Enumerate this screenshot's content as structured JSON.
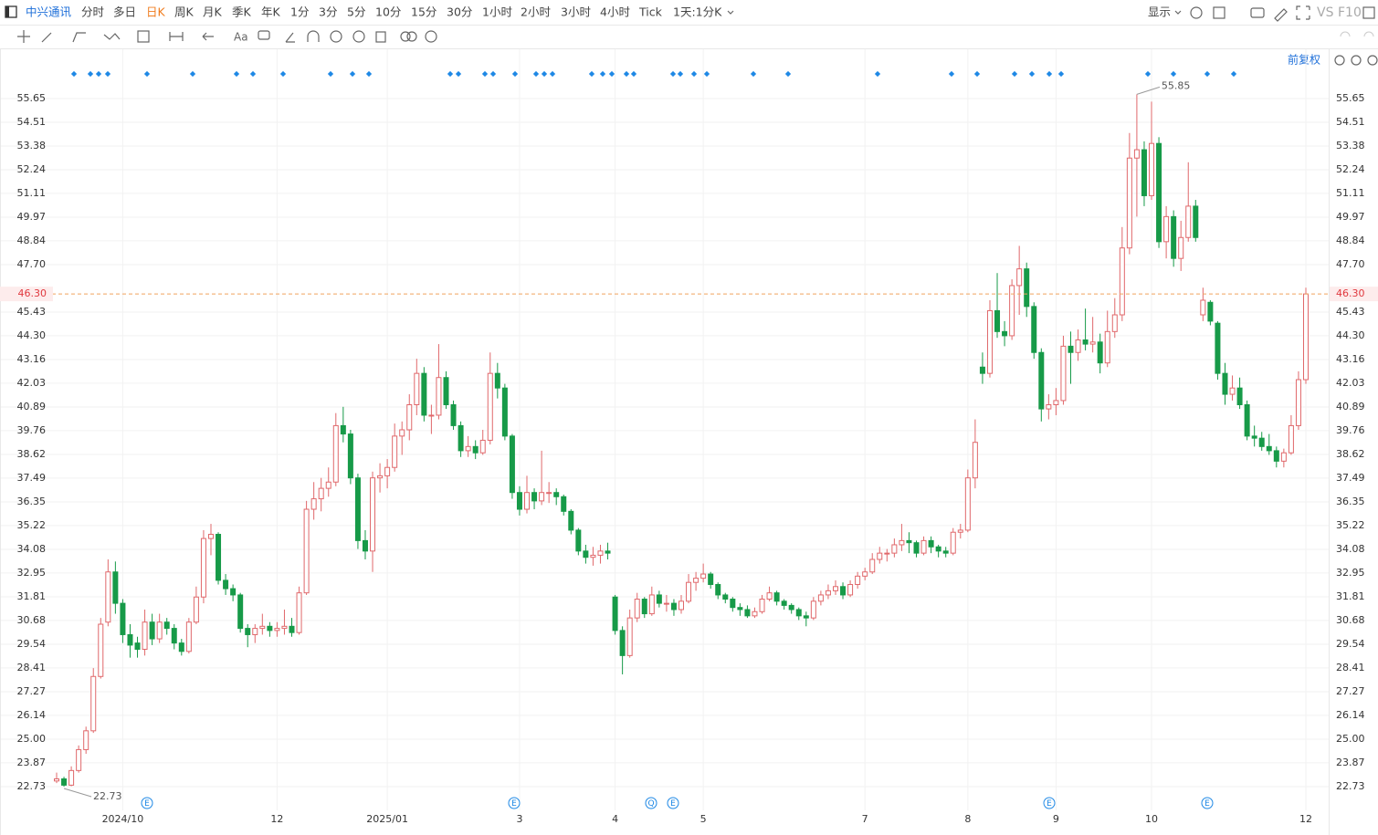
{
  "toolbar": {
    "symbol": "中兴通讯",
    "periods": [
      "分时",
      "多日",
      "日K",
      "周K",
      "月K",
      "季K",
      "年K",
      "1分",
      "3分",
      "5分",
      "10分",
      "15分",
      "30分",
      "1小时",
      "2小时",
      "3小时",
      "4小时",
      "Tick"
    ],
    "active_index": 2,
    "range": "1天:1分K",
    "display": "显示",
    "compare": "VS",
    "f10": "F10"
  },
  "chart_data": {
    "type": "candlestick",
    "adjust_label": "前复权",
    "categories": [
      null,
      null,
      null,
      null,
      null,
      null,
      null,
      null,
      null,
      "2024/10",
      null,
      null,
      null,
      null,
      null,
      null,
      null,
      null,
      null,
      null,
      null,
      null,
      null,
      null,
      null,
      null,
      null,
      null,
      null,
      null,
      "12",
      null,
      null,
      null,
      null,
      null,
      null,
      null,
      null,
      null,
      null,
      null,
      null,
      null,
      null,
      "2025/01",
      null,
      null,
      null,
      null,
      null,
      null,
      null,
      null,
      null,
      null,
      null,
      null,
      null,
      null,
      null,
      null,
      null,
      "3",
      null,
      null,
      null,
      null,
      null,
      null,
      null,
      null,
      null,
      null,
      null,
      null,
      "4",
      null,
      null,
      null,
      null,
      null,
      null,
      null,
      null,
      null,
      null,
      null,
      "5",
      null,
      null,
      null,
      null,
      null,
      null,
      null,
      null,
      null,
      null,
      null,
      null,
      null,
      null,
      null,
      null,
      null,
      null,
      null,
      null,
      null,
      "7",
      null,
      null,
      null,
      null,
      null,
      null,
      null,
      null,
      null,
      null,
      null,
      null,
      null,
      "8",
      null,
      null,
      null,
      null,
      null,
      null,
      null,
      null,
      null,
      null,
      null,
      "9",
      null,
      null,
      null,
      null,
      null,
      null,
      null,
      null,
      null,
      null,
      null,
      null,
      "10",
      null,
      null,
      null,
      null,
      null,
      null,
      null,
      null,
      null,
      null,
      null,
      null,
      null,
      null,
      null,
      null,
      null,
      null,
      null,
      null,
      "12"
    ],
    "values": [
      [
        23.0,
        23.4,
        22.9,
        23.1
      ],
      [
        23.1,
        23.2,
        22.73,
        22.8
      ],
      [
        22.8,
        23.7,
        22.75,
        23.5
      ],
      [
        23.5,
        24.7,
        23.4,
        24.5
      ],
      [
        24.5,
        25.6,
        24.3,
        25.4
      ],
      [
        25.4,
        28.4,
        25.3,
        28.0
      ],
      [
        28.0,
        30.8,
        27.9,
        30.5
      ],
      [
        30.6,
        33.6,
        30.4,
        33.0
      ],
      [
        33.0,
        33.5,
        31.0,
        31.5
      ],
      [
        31.5,
        31.7,
        29.6,
        30.0
      ],
      [
        30.0,
        30.5,
        28.9,
        29.5
      ],
      [
        29.6,
        29.9,
        28.9,
        29.3
      ],
      [
        29.3,
        31.2,
        29.0,
        30.6
      ],
      [
        30.6,
        31.0,
        29.5,
        29.8
      ],
      [
        29.8,
        31.0,
        29.6,
        30.6
      ],
      [
        30.6,
        30.8,
        30.0,
        30.3
      ],
      [
        30.3,
        30.5,
        29.3,
        29.6
      ],
      [
        29.6,
        29.8,
        29.0,
        29.2
      ],
      [
        29.2,
        30.8,
        29.1,
        30.6
      ],
      [
        30.6,
        32.3,
        30.5,
        31.8
      ],
      [
        31.8,
        35.0,
        31.5,
        34.6
      ],
      [
        34.6,
        35.3,
        33.8,
        34.8
      ],
      [
        34.8,
        34.9,
        32.4,
        32.6
      ],
      [
        32.6,
        32.9,
        31.9,
        32.2
      ],
      [
        32.2,
        32.4,
        31.6,
        31.9
      ],
      [
        31.9,
        32.0,
        30.1,
        30.3
      ],
      [
        30.3,
        30.5,
        29.4,
        30.0
      ],
      [
        30.0,
        30.5,
        29.6,
        30.3
      ],
      [
        30.3,
        31.0,
        30.0,
        30.4
      ],
      [
        30.4,
        30.6,
        29.9,
        30.2
      ],
      [
        30.2,
        30.6,
        29.9,
        30.3
      ],
      [
        30.3,
        31.2,
        30.0,
        30.4
      ],
      [
        30.4,
        30.8,
        29.9,
        30.1
      ],
      [
        30.1,
        32.3,
        30.0,
        32.0
      ],
      [
        32.0,
        36.4,
        31.9,
        36.0
      ],
      [
        36.0,
        37.3,
        35.5,
        36.5
      ],
      [
        36.5,
        37.5,
        35.9,
        37.0
      ],
      [
        37.0,
        38.0,
        36.6,
        37.3
      ],
      [
        37.3,
        40.6,
        37.1,
        40.0
      ],
      [
        40.0,
        40.9,
        39.2,
        39.6
      ],
      [
        39.6,
        39.8,
        37.2,
        37.5
      ],
      [
        37.5,
        37.7,
        34.1,
        34.5
      ],
      [
        34.5,
        35.0,
        33.6,
        34.0
      ],
      [
        34.0,
        37.8,
        33.0,
        37.5
      ],
      [
        37.5,
        38.2,
        36.8,
        37.6
      ],
      [
        37.6,
        38.4,
        37.0,
        38.0
      ],
      [
        38.0,
        40.1,
        37.8,
        39.5
      ],
      [
        39.5,
        40.2,
        38.6,
        39.8
      ],
      [
        39.8,
        41.5,
        39.3,
        41.0
      ],
      [
        41.0,
        43.2,
        40.5,
        42.5
      ],
      [
        42.5,
        42.8,
        40.2,
        40.5
      ],
      [
        40.5,
        41.0,
        39.6,
        40.5
      ],
      [
        40.5,
        43.9,
        40.3,
        42.3
      ],
      [
        42.3,
        42.6,
        40.8,
        41.0
      ],
      [
        41.0,
        41.2,
        39.8,
        40.0
      ],
      [
        40.0,
        40.2,
        38.5,
        38.8
      ],
      [
        38.8,
        39.5,
        38.5,
        39.0
      ],
      [
        39.0,
        39.3,
        38.4,
        38.7
      ],
      [
        38.7,
        39.8,
        38.6,
        39.3
      ],
      [
        39.3,
        43.5,
        39.1,
        42.5
      ],
      [
        42.5,
        43.0,
        41.3,
        41.8
      ],
      [
        41.8,
        42.0,
        39.3,
        39.5
      ],
      [
        39.5,
        39.6,
        36.5,
        36.8
      ],
      [
        36.8,
        37.1,
        35.7,
        36.0
      ],
      [
        36.0,
        37.6,
        35.8,
        36.8
      ],
      [
        36.8,
        37.0,
        36.0,
        36.4
      ],
      [
        36.4,
        38.8,
        36.2,
        36.8
      ],
      [
        36.8,
        37.3,
        36.3,
        36.8
      ],
      [
        36.8,
        37.0,
        36.2,
        36.6
      ],
      [
        36.6,
        36.7,
        35.7,
        35.9
      ],
      [
        35.9,
        36.0,
        34.8,
        35.0
      ],
      [
        35.0,
        35.1,
        33.8,
        34.0
      ],
      [
        34.0,
        34.3,
        33.4,
        33.7
      ],
      [
        33.7,
        34.2,
        33.3,
        33.8
      ],
      [
        33.8,
        34.3,
        33.4,
        34.0
      ],
      [
        34.0,
        34.4,
        33.6,
        33.9
      ],
      [
        31.8,
        31.9,
        30.0,
        30.2
      ],
      [
        30.2,
        30.4,
        28.1,
        29.0
      ],
      [
        29.0,
        31.2,
        28.9,
        30.8
      ],
      [
        30.8,
        32.0,
        30.6,
        31.7
      ],
      [
        31.7,
        31.8,
        30.8,
        31.0
      ],
      [
        31.0,
        32.3,
        30.9,
        31.9
      ],
      [
        31.9,
        32.1,
        31.3,
        31.5
      ],
      [
        31.5,
        31.9,
        31.1,
        31.5
      ],
      [
        31.5,
        31.7,
        30.9,
        31.2
      ],
      [
        31.2,
        31.9,
        31.0,
        31.6
      ],
      [
        31.6,
        32.9,
        31.5,
        32.5
      ],
      [
        32.5,
        33.0,
        32.1,
        32.7
      ],
      [
        32.7,
        33.4,
        32.5,
        32.9
      ],
      [
        32.9,
        33.0,
        32.2,
        32.4
      ],
      [
        32.4,
        32.5,
        31.7,
        31.9
      ],
      [
        31.9,
        32.0,
        31.5,
        31.7
      ],
      [
        31.7,
        31.8,
        31.1,
        31.3
      ],
      [
        31.3,
        31.5,
        30.9,
        31.2
      ],
      [
        31.2,
        31.4,
        30.8,
        30.9
      ],
      [
        30.9,
        31.3,
        30.8,
        31.1
      ],
      [
        31.1,
        31.9,
        31.0,
        31.7
      ],
      [
        31.7,
        32.3,
        31.6,
        32.0
      ],
      [
        32.0,
        32.1,
        31.4,
        31.6
      ],
      [
        31.6,
        31.7,
        31.2,
        31.4
      ],
      [
        31.4,
        31.5,
        31.0,
        31.2
      ],
      [
        31.2,
        31.3,
        30.7,
        30.9
      ],
      [
        30.9,
        31.1,
        30.4,
        30.8
      ],
      [
        30.8,
        31.8,
        30.7,
        31.6
      ],
      [
        31.6,
        32.1,
        31.4,
        31.9
      ],
      [
        31.9,
        32.4,
        31.7,
        32.1
      ],
      [
        32.1,
        32.6,
        31.9,
        32.3
      ],
      [
        32.3,
        32.5,
        31.7,
        31.9
      ],
      [
        31.9,
        32.6,
        31.8,
        32.4
      ],
      [
        32.4,
        33.0,
        32.2,
        32.8
      ],
      [
        32.8,
        33.2,
        32.6,
        33.0
      ],
      [
        33.0,
        33.9,
        32.9,
        33.6
      ],
      [
        33.6,
        34.2,
        33.4,
        33.9
      ],
      [
        33.9,
        34.1,
        33.5,
        33.9
      ],
      [
        33.9,
        34.6,
        33.7,
        34.3
      ],
      [
        34.3,
        35.3,
        34.0,
        34.5
      ],
      [
        34.5,
        34.9,
        33.9,
        34.4
      ],
      [
        34.4,
        34.5,
        33.7,
        33.9
      ],
      [
        33.9,
        34.7,
        33.8,
        34.5
      ],
      [
        34.5,
        34.7,
        33.9,
        34.2
      ],
      [
        34.2,
        34.3,
        33.7,
        34.0
      ],
      [
        34.0,
        34.2,
        33.7,
        33.9
      ],
      [
        33.9,
        35.1,
        33.8,
        34.9
      ],
      [
        34.9,
        35.3,
        34.6,
        35.0
      ],
      [
        35.0,
        37.9,
        34.9,
        37.5
      ],
      [
        37.5,
        40.3,
        37.0,
        39.2
      ],
      [
        42.8,
        43.5,
        42.0,
        42.5
      ],
      [
        42.5,
        46.0,
        42.3,
        45.5
      ],
      [
        45.5,
        47.3,
        44.2,
        44.5
      ],
      [
        44.5,
        45.0,
        43.8,
        44.3
      ],
      [
        44.3,
        47.0,
        44.1,
        46.7
      ],
      [
        46.7,
        48.6,
        45.3,
        47.5
      ],
      [
        47.5,
        47.8,
        45.2,
        45.7
      ],
      [
        45.7,
        45.9,
        43.2,
        43.5
      ],
      [
        43.5,
        43.7,
        40.2,
        40.8
      ],
      [
        40.8,
        41.5,
        40.3,
        41.0
      ],
      [
        41.0,
        41.8,
        40.5,
        41.2
      ],
      [
        41.2,
        44.3,
        41.0,
        43.8
      ],
      [
        43.8,
        44.5,
        42.0,
        43.5
      ],
      [
        43.5,
        44.6,
        43.1,
        44.1
      ],
      [
        44.1,
        45.6,
        43.6,
        43.9
      ],
      [
        43.9,
        45.2,
        43.5,
        44.0
      ],
      [
        44.0,
        44.4,
        42.5,
        43.0
      ],
      [
        43.0,
        45.5,
        42.8,
        44.5
      ],
      [
        44.5,
        46.1,
        44.2,
        45.3
      ],
      [
        45.3,
        49.5,
        45.0,
        48.5
      ],
      [
        48.5,
        54.0,
        48.2,
        52.8
      ],
      [
        52.8,
        55.85,
        50.0,
        53.2
      ],
      [
        53.2,
        53.6,
        50.5,
        51.0
      ],
      [
        51.0,
        55.5,
        50.8,
        53.5
      ],
      [
        53.5,
        53.8,
        48.5,
        48.8
      ],
      [
        48.8,
        50.5,
        48.0,
        50.0
      ],
      [
        50.0,
        50.3,
        47.6,
        48.0
      ],
      [
        48.0,
        49.8,
        47.4,
        49.0
      ],
      [
        49.0,
        52.6,
        48.8,
        50.5
      ],
      [
        50.5,
        50.8,
        48.8,
        49.0
      ],
      [
        45.3,
        46.6,
        45.0,
        46.0
      ],
      [
        45.9,
        46.0,
        44.8,
        45.0
      ],
      [
        44.9,
        45.0,
        42.2,
        42.5
      ],
      [
        42.5,
        43.0,
        41.0,
        41.5
      ],
      [
        41.5,
        42.4,
        41.2,
        41.8
      ],
      [
        41.8,
        42.3,
        40.8,
        41.0
      ],
      [
        41.0,
        41.2,
        39.3,
        39.5
      ],
      [
        39.5,
        40.0,
        39.0,
        39.4
      ],
      [
        39.4,
        39.7,
        38.8,
        39.0
      ],
      [
        39.0,
        39.6,
        38.6,
        38.8
      ],
      [
        38.8,
        39.0,
        38.0,
        38.3
      ],
      [
        38.3,
        38.9,
        38.0,
        38.7
      ],
      [
        38.7,
        40.5,
        38.6,
        40.0
      ],
      [
        40.0,
        42.6,
        39.8,
        42.2
      ],
      [
        42.2,
        46.6,
        42.0,
        46.3
      ]
    ],
    "up_color": "#e0686b",
    "down_color": "#179a48",
    "ylim": [
      22.38,
      56.87
    ],
    "yticks": [
      22.73,
      23.87,
      {
        "value": 25,
        "label": "25.00"
      },
      26.14,
      27.27,
      28.41,
      29.54,
      30.68,
      31.81,
      32.95,
      34.08,
      35.22,
      36.35,
      37.49,
      38.62,
      39.76,
      40.89,
      42.03,
      43.16,
      {
        "value": 44.3,
        "label": "44.30"
      },
      45.43,
      {
        "value": 47.7,
        "label": "47.70"
      },
      48.84,
      49.97,
      51.11,
      52.24,
      53.38,
      54.51,
      55.65
    ],
    "last_price": {
      "value": 46.3,
      "label": "46.30"
    },
    "high_label": 55.85,
    "low_label": 22.73,
    "event_markers": [
      "E",
      "E",
      "Q",
      "E",
      "E",
      "E"
    ],
    "grid": true
  }
}
